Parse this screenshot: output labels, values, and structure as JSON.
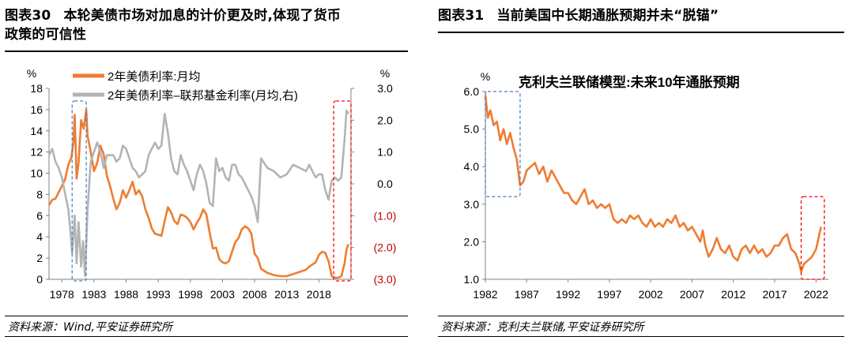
{
  "left": {
    "fig_label": "图表30",
    "fig_title_line1": "本轮美债市场对加息的计价更及时,体现了货币",
    "fig_title_line2": "政策的可信性",
    "source": "资料来源：Wind,平安证券研究所",
    "chart_data": {
      "type": "line",
      "x_ticks": [
        "1978",
        "1983",
        "1988",
        "1993",
        "1998",
        "2003",
        "2008",
        "2013",
        "2018"
      ],
      "y_left_label": "%",
      "y_left_ticks": [
        "0",
        "2",
        "4",
        "6",
        "8",
        "10",
        "12",
        "14",
        "16",
        "18"
      ],
      "y_left_range": [
        0,
        18
      ],
      "y_right_label": "%",
      "y_right_ticks": [
        "3.0",
        "2.0",
        "1.0",
        "0.0",
        "(1.0)",
        "(2.0)",
        "(3.0)"
      ],
      "y_right_range": [
        -3,
        3
      ],
      "x_range": [
        1976,
        2023
      ],
      "series": [
        {
          "name": "2年美债利率:月均",
          "axis": "left",
          "color": "#ED7D31",
          "x": [
            1976,
            1976.5,
            1977,
            1977.5,
            1978,
            1978.5,
            1979,
            1979.5,
            1979.8,
            1980,
            1980.3,
            1980.6,
            1981,
            1981.4,
            1981.8,
            1982,
            1982.5,
            1983,
            1983.5,
            1984,
            1984.5,
            1985,
            1985.5,
            1986,
            1986.5,
            1987,
            1987.5,
            1988,
            1988.5,
            1989,
            1989.5,
            1990,
            1990.5,
            1991,
            1991.5,
            1992,
            1992.5,
            1993,
            1993.5,
            1994,
            1994.5,
            1995,
            1995.5,
            1996,
            1996.5,
            1997,
            1997.5,
            1998,
            1998.5,
            1999,
            1999.5,
            2000,
            2000.5,
            2001,
            2001.5,
            2002,
            2002.5,
            2003,
            2003.5,
            2004,
            2004.5,
            2005,
            2005.5,
            2006,
            2006.5,
            2007,
            2007.5,
            2008,
            2008.5,
            2009,
            2010,
            2011,
            2012,
            2013,
            2014,
            2015,
            2016,
            2016.5,
            2017,
            2017.5,
            2018,
            2018.5,
            2019,
            2019.5,
            2020,
            2020.5,
            2021,
            2021.5,
            2022,
            2022.3,
            2022.6
          ],
          "values": [
            7.0,
            7.5,
            7.6,
            8.2,
            8.8,
            9.4,
            10.8,
            11.5,
            13.0,
            15.5,
            9.5,
            11.0,
            15.0,
            14.2,
            16.0,
            13.5,
            12.0,
            10.2,
            11.0,
            12.6,
            11.8,
            9.8,
            8.8,
            7.6,
            6.6,
            7.2,
            8.4,
            7.7,
            8.4,
            9.2,
            8.0,
            8.4,
            7.8,
            6.6,
            5.8,
            4.8,
            4.3,
            4.2,
            4.1,
            5.5,
            6.8,
            6.3,
            5.5,
            5.2,
            6.1,
            6.0,
            5.8,
            5.4,
            4.7,
            5.3,
            5.8,
            6.6,
            6.1,
            4.4,
            2.9,
            3.0,
            1.9,
            1.6,
            1.5,
            1.7,
            2.6,
            3.5,
            3.9,
            4.7,
            5.0,
            4.8,
            4.3,
            2.4,
            2.0,
            1.0,
            0.6,
            0.4,
            0.3,
            0.3,
            0.5,
            0.7,
            0.9,
            1.2,
            1.4,
            1.6,
            2.3,
            2.6,
            2.5,
            1.7,
            0.3,
            0.15,
            0.15,
            0.3,
            1.5,
            2.8,
            3.3
          ]
        },
        {
          "name": "2年美债利率–联邦基金利率(月均,右)",
          "axis": "right",
          "color": "#B4B4B4",
          "x": [
            1976,
            1976.5,
            1977,
            1977.5,
            1978,
            1978.5,
            1979,
            1979.3,
            1979.6,
            1980,
            1980.3,
            1980.6,
            1981,
            1981.3,
            1981.6,
            1982,
            1982.5,
            1983,
            1983.5,
            1984,
            1984.5,
            1985,
            1985.5,
            1986,
            1986.5,
            1987,
            1987.5,
            1988,
            1988.5,
            1989,
            1989.5,
            1990,
            1990.5,
            1991,
            1991.5,
            1992,
            1992.5,
            1993,
            1993.5,
            1994,
            1994.5,
            1995,
            1995.5,
            1996,
            1996.5,
            1997,
            1997.5,
            1998,
            1998.5,
            1999,
            1999.5,
            2000,
            2000.5,
            2001,
            2001.5,
            2002,
            2002.5,
            2003,
            2003.5,
            2004,
            2004.5,
            2005,
            2005.5,
            2006,
            2006.5,
            2007,
            2007.5,
            2008,
            2008.5,
            2009,
            2010,
            2011,
            2012,
            2013,
            2014,
            2015,
            2016,
            2016.5,
            2017,
            2017.5,
            2018,
            2018.5,
            2019,
            2019.5,
            2020,
            2020.5,
            2021,
            2021.5,
            2022,
            2022.3,
            2022.6
          ],
          "values": [
            0.9,
            1.1,
            0.7,
            0.5,
            0.2,
            -0.3,
            -0.8,
            -1.4,
            -2.2,
            -1.0,
            -2.5,
            -1.2,
            -2.6,
            -1.8,
            -2.9,
            -0.8,
            0.7,
            1.0,
            1.3,
            1.0,
            0.5,
            0.9,
            0.9,
            0.9,
            0.7,
            0.8,
            1.2,
            1.1,
            0.8,
            0.5,
            0.4,
            0.2,
            0.3,
            0.4,
            0.9,
            1.1,
            1.3,
            1.1,
            1.2,
            2.2,
            1.6,
            0.8,
            0.4,
            0.3,
            0.9,
            0.6,
            0.4,
            0.1,
            -0.2,
            0.3,
            0.6,
            0.4,
            0.0,
            -0.6,
            -0.7,
            0.8,
            0.4,
            0.5,
            0.2,
            0.1,
            0.6,
            0.6,
            0.3,
            0.2,
            0.0,
            -0.2,
            -0.4,
            -0.7,
            -1.2,
            0.8,
            0.5,
            0.4,
            0.2,
            0.3,
            0.6,
            0.5,
            0.4,
            0.6,
            0.4,
            0.2,
            0.3,
            0.3,
            -0.2,
            -0.5,
            0.1,
            0.2,
            0.1,
            0.2,
            1.4,
            2.3,
            2.2
          ]
        }
      ],
      "highlights": [
        {
          "x": [
            1979.6,
            1981.8
          ],
          "style": "dashed",
          "color": "#4F81BD"
        },
        {
          "x": [
            2020.3,
            2023.0
          ],
          "style": "dashed",
          "color": "#FF0000"
        }
      ],
      "right_negative_color": "#C00000",
      "grid": false,
      "legend": "top-left"
    }
  },
  "right": {
    "fig_label": "图表31",
    "fig_title": "当前美国中长期通胀预期并未“脱锚”",
    "source": "资料来源：克利夫兰联储,平安证券研究所",
    "chart_data": {
      "type": "line",
      "title": "克利夫兰联储模型:未来10年通胀预期",
      "y_label": "%",
      "x_ticks": [
        "1982",
        "1987",
        "1992",
        "1997",
        "2002",
        "2007",
        "2012",
        "2017",
        "2022"
      ],
      "y_ticks": [
        "1.0",
        "2.0",
        "3.0",
        "4.0",
        "5.0",
        "6.0"
      ],
      "y_range": [
        1,
        6
      ],
      "x_range": [
        1982,
        2023.5
      ],
      "series": [
        {
          "name": "未来10年通胀预期",
          "color": "#ED7D31",
          "x": [
            1982,
            1982.3,
            1982.6,
            1983,
            1983.4,
            1983.8,
            1984.2,
            1984.6,
            1985,
            1985.4,
            1985.8,
            1986.2,
            1986.6,
            1987,
            1987.5,
            1988,
            1988.5,
            1989,
            1989.5,
            1990,
            1990.5,
            1991,
            1991.5,
            1992,
            1992.5,
            1993,
            1993.5,
            1994,
            1994.5,
            1995,
            1995.5,
            1996,
            1996.5,
            1997,
            1997.5,
            1998,
            1998.5,
            1999,
            1999.5,
            2000,
            2000.5,
            2001,
            2001.5,
            2002,
            2002.5,
            2003,
            2003.5,
            2004,
            2004.5,
            2005,
            2005.5,
            2006,
            2006.5,
            2007,
            2007.5,
            2008,
            2008.3,
            2008.6,
            2009,
            2009.5,
            2010,
            2010.5,
            2011,
            2011.5,
            2012,
            2012.5,
            2013,
            2013.5,
            2014,
            2014.5,
            2015,
            2015.5,
            2016,
            2016.5,
            2017,
            2017.5,
            2018,
            2018.5,
            2019,
            2019.5,
            2020,
            2020.2,
            2020.5,
            2021,
            2021.5,
            2022,
            2022.3,
            2022.6
          ],
          "values": [
            5.9,
            5.3,
            5.5,
            5.1,
            5.2,
            4.7,
            5.0,
            4.6,
            4.9,
            4.5,
            4.2,
            3.5,
            3.6,
            3.9,
            4.0,
            4.1,
            3.8,
            4.0,
            3.6,
            3.9,
            3.7,
            3.5,
            3.3,
            3.3,
            3.1,
            3.0,
            3.2,
            3.4,
            3.0,
            3.1,
            2.9,
            3.0,
            2.9,
            3.0,
            2.6,
            2.5,
            2.6,
            2.5,
            2.7,
            2.6,
            2.7,
            2.5,
            2.4,
            2.6,
            2.4,
            2.5,
            2.4,
            2.6,
            2.5,
            2.7,
            2.4,
            2.5,
            2.3,
            2.4,
            2.2,
            2.0,
            2.3,
            1.9,
            1.6,
            1.8,
            2.1,
            1.8,
            1.7,
            1.9,
            1.6,
            1.5,
            1.8,
            1.9,
            1.7,
            1.9,
            1.7,
            1.8,
            1.6,
            1.7,
            1.9,
            1.9,
            2.1,
            2.2,
            1.8,
            1.7,
            1.4,
            1.2,
            1.4,
            1.5,
            1.6,
            1.8,
            2.1,
            2.4
          ]
        }
      ],
      "highlights": [
        {
          "x": [
            1982,
            1986.2
          ],
          "y": [
            3.2,
            6.0
          ],
          "style": "dashed",
          "color": "#4F81BD"
        },
        {
          "x": [
            2020.2,
            2023.0
          ],
          "y": [
            1.0,
            3.2
          ],
          "style": "dashed",
          "color": "#FF0000"
        }
      ],
      "grid": false
    }
  }
}
